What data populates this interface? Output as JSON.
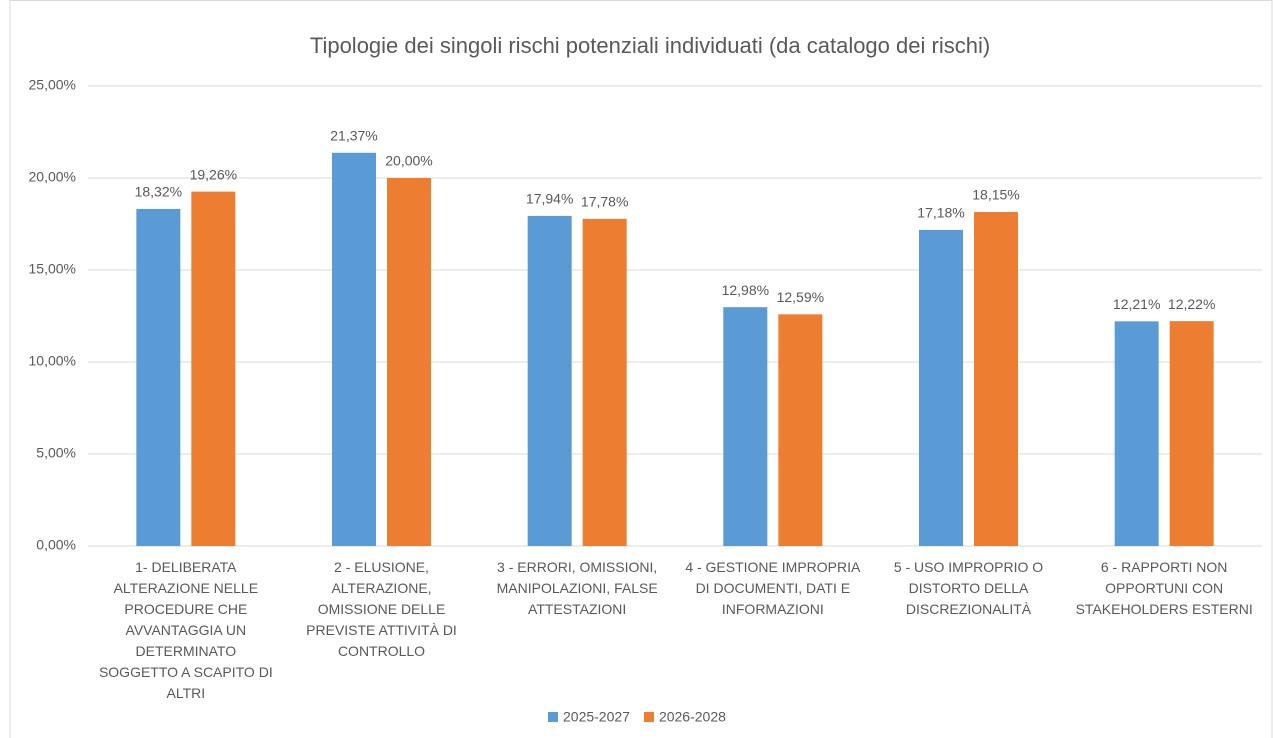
{
  "chart_data": {
    "type": "bar",
    "title": "Tipologie dei singoli rischi potenziali individuati (da catalogo dei rischi)",
    "categories": [
      "1- DELIBERATA ALTERAZIONE NELLE PROCEDURE CHE AVVANTAGGIA UN DETERMINATO SOGGETTO A SCAPITO DI ALTRI",
      "2 - ELUSIONE, ALTERAZIONE, OMISSIONE DELLE PREVISTE ATTIVITÀ DI CONTROLLO",
      "3 - ERRORI, OMISSIONI, MANIPOLAZIONI, FALSE ATTESTAZIONI",
      "4 - GESTIONE IMPROPRIA DI DOCUMENTI, DATI E INFORMAZIONI",
      "5 - USO IMPROPRIO O DISTORTO DELLA DISCREZIONALITÀ",
      "6 - RAPPORTI NON OPPORTUNI CON STAKEHOLDERS ESTERNI"
    ],
    "series": [
      {
        "name": "2025-2027",
        "color": "#5b9bd5",
        "values": [
          18.32,
          21.37,
          17.94,
          12.98,
          17.18,
          12.21
        ],
        "value_labels": [
          "18,32%",
          "21,37%",
          "17,94%",
          "12,98%",
          "17,18%",
          "12,21%"
        ]
      },
      {
        "name": "2026-2028",
        "color": "#ed7d31",
        "values": [
          19.26,
          20.0,
          17.78,
          12.59,
          18.15,
          12.22
        ],
        "value_labels": [
          "19,26%",
          "20,00%",
          "17,78%",
          "12,59%",
          "18,15%",
          "12,22%"
        ]
      }
    ],
    "ylim": [
      0,
      25
    ],
    "yticks": [
      {
        "value": 0,
        "label": "0,00%"
      },
      {
        "value": 5,
        "label": "5,00%"
      },
      {
        "value": 10,
        "label": "10,00%"
      },
      {
        "value": 15,
        "label": "15,00%"
      },
      {
        "value": 20,
        "label": "20,00%"
      },
      {
        "value": 25,
        "label": "25,00%"
      }
    ],
    "grid": true,
    "legend": "bottom"
  }
}
